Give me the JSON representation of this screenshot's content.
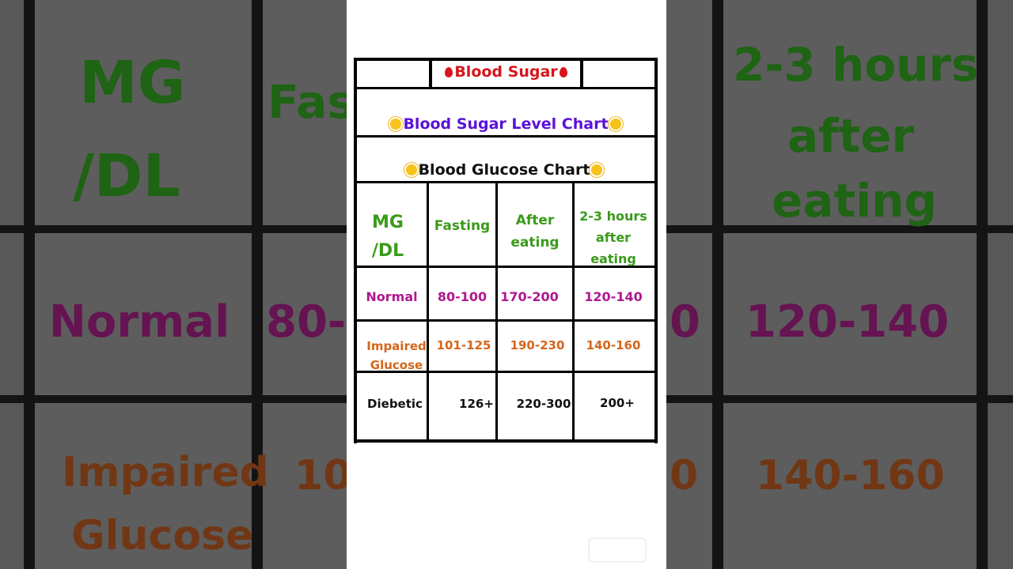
{
  "chart_data": {
    "type": "table",
    "header_tag": "Blood Sugar",
    "title": "Blood Sugar Level Chart",
    "subtitle": "Blood Glucose Chart",
    "columns": [
      "MG /DL",
      "Fasting",
      "After eating",
      "2-3 hours after eating"
    ],
    "rows": [
      {
        "label": "Normal",
        "values": [
          "80-100",
          "170-200",
          "120-140"
        ]
      },
      {
        "label": "Impaired Glucose",
        "values": [
          "101-125",
          "190-230",
          "140-160"
        ]
      },
      {
        "label": "Diebetic",
        "values": [
          "126+",
          "220-300",
          "200+"
        ]
      }
    ]
  },
  "header": {
    "tag": "Blood Sugar",
    "title": "Blood Sugar Level Chart",
    "subtitle": "Blood Glucose Chart"
  },
  "table": {
    "col_mgdl_1": "MG",
    "col_mgdl_2": "/DL",
    "col_fasting": "Fasting",
    "col_after_1": "After",
    "col_after_2": "eating",
    "col_23_1": "2-3 hours",
    "col_23_2": "after",
    "col_23_3": "eating",
    "row_normal": "Normal",
    "row_impaired_1": "Impaired",
    "row_impaired_2": "Glucose",
    "row_diabetic": "Diebetic",
    "normal_fasting": "80-100",
    "normal_after": "170-200",
    "normal_23": "120-140",
    "impaired_fasting": "101-125",
    "impaired_after": "190-230",
    "impaired_23": "140-160",
    "diabetic_fasting": "126+",
    "diabetic_after": "220-300",
    "diabetic_23": "200+"
  },
  "background": {
    "mg": "MG",
    "dl": "/DL",
    "fas": "Fas",
    "hours": "2-3 hours",
    "after": "after",
    "eating": "eating",
    "normal": "Normal",
    "normal_val": "80-",
    "normal_val_partial": "0",
    "normal_23": "120-140",
    "impaired": "Impaired",
    "glucose": "Glucose",
    "impaired_val": "10",
    "impaired_val_partial": "0",
    "impaired_23": "140-160"
  },
  "colors": {
    "green": "#3a9a1a",
    "magenta": "#b0188e",
    "orange": "#d4661c",
    "red": "#d8151c",
    "purple": "#5a12d8"
  },
  "icons": {
    "sun": "sun-icon",
    "drop": "blood-drop-icon"
  }
}
